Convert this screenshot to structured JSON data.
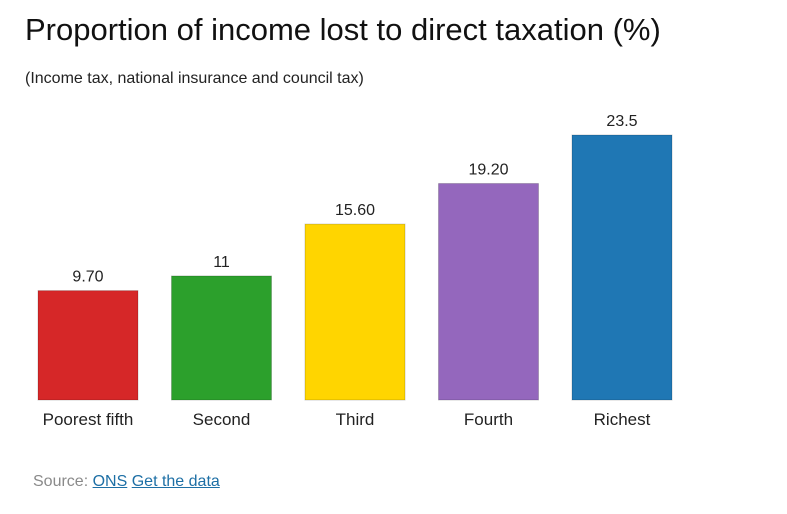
{
  "chart_data": {
    "type": "bar",
    "title": "Proportion of income lost to direct taxation (%)",
    "subtitle": "(Income tax, national insurance and council tax)",
    "categories": [
      "Poorest fifth",
      "Second",
      "Third",
      "Fourth",
      "Richest"
    ],
    "values": [
      9.7,
      11,
      15.6,
      19.2,
      23.5
    ],
    "value_labels": [
      "9.70",
      "11",
      "15.60",
      "19.20",
      "23.5"
    ],
    "colors": [
      "#d62728",
      "#2ca02c",
      "#ffd500",
      "#9467bd",
      "#1f77b4"
    ],
    "xlabel": "",
    "ylabel": "",
    "ylim": [
      0,
      23.5
    ],
    "grid": false,
    "legend": "none"
  },
  "source": {
    "label": "Source:",
    "link_ons": "ONS",
    "link_data": "Get the data",
    "text_color": "#8a8a8a",
    "link_color": "#1d6fa5"
  }
}
